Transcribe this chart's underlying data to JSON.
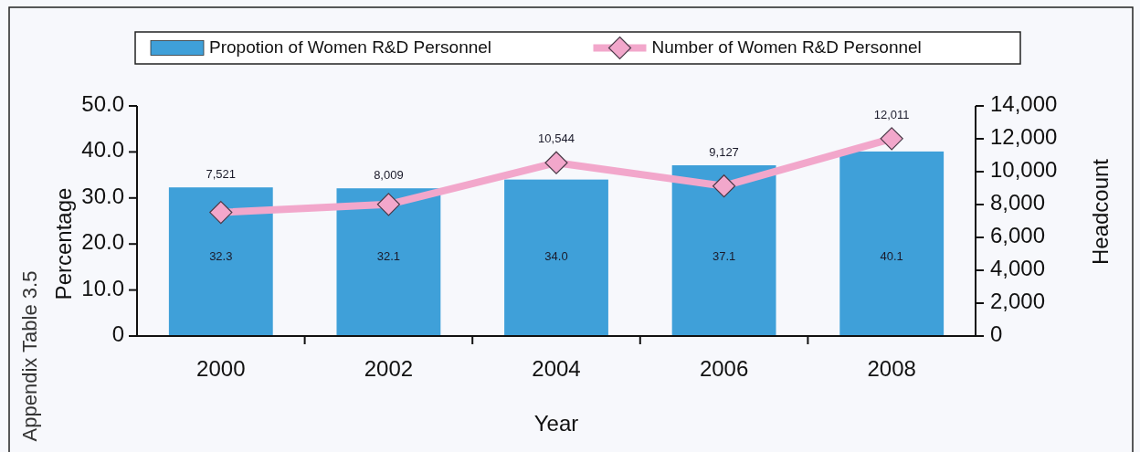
{
  "chart_data": {
    "type": "bar",
    "categories": [
      "2000",
      "2002",
      "2004",
      "2006",
      "2008"
    ],
    "series": [
      {
        "name": "Propotion of Women R&D Personnel",
        "color": "#3fa0d9",
        "values": [
          32.3,
          32.1,
          34.0,
          37.1,
          40.1
        ],
        "value_labels": [
          "32.3",
          "32.1",
          "34.0",
          "37.1",
          "40.1"
        ]
      },
      {
        "name": "Number of Women R&D Personnel",
        "type": "line",
        "axis": "y2",
        "color": "#f2a7cb",
        "values": [
          7521,
          8009,
          10544,
          9127,
          12011
        ],
        "value_labels": [
          "7,521",
          "8,009",
          "10,544",
          "9,127",
          "12,011"
        ]
      }
    ],
    "xlabel": "Year",
    "ylabel": "Percentage",
    "y2label": "Headcount",
    "ylim": [
      0,
      50
    ],
    "yticks": [
      0,
      {
        "value": 10,
        "label": "10.0"
      },
      {
        "value": 20,
        "label": "20.0"
      },
      {
        "value": 30,
        "label": "30.0"
      },
      {
        "value": 40,
        "label": "40.0"
      },
      {
        "value": 50,
        "label": "50.0"
      }
    ],
    "y2lim": [
      0,
      14000
    ],
    "y2ticks": [
      0,
      {
        "value": 2000,
        "label": "2,000"
      },
      {
        "value": 4000,
        "label": "4,000"
      },
      {
        "value": 6000,
        "label": "6,000"
      },
      {
        "value": 8000,
        "label": "8,000"
      },
      {
        "value": 10000,
        "label": "10,000"
      },
      {
        "value": 12000,
        "label": "12,000"
      },
      {
        "value": 14000,
        "label": "14,000"
      }
    ],
    "legend": "top",
    "marker": "diamond",
    "annotations": [
      "Appendix Table 3.5"
    ]
  }
}
